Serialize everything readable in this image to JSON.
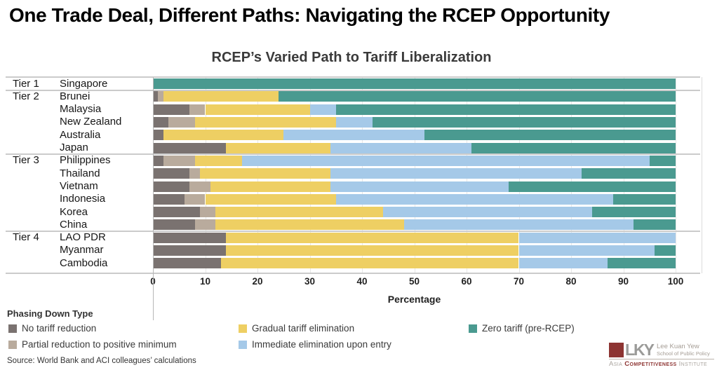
{
  "page_title": "One Trade Deal, Different Paths: Navigating the RCEP Opportunity",
  "chart_data": {
    "type": "bar",
    "orientation": "horizontal",
    "stacked": true,
    "title": "RCEP’s Varied Path to Tariff Liberalization",
    "xlabel": "Percentage",
    "xlim": [
      0,
      100
    ],
    "x_ticks": [
      0,
      10,
      20,
      30,
      40,
      50,
      60,
      70,
      80,
      90,
      100
    ],
    "grid": true,
    "legend_title": "Phasing Down Type",
    "legend_position": "bottom",
    "groups": [
      {
        "tier": "Tier 1",
        "countries": [
          "Singapore"
        ]
      },
      {
        "tier": "Tier 2",
        "countries": [
          "Brunei",
          "Malaysia",
          "New Zealand",
          "Australia",
          "Japan"
        ]
      },
      {
        "tier": "Tier 3",
        "countries": [
          "Philippines",
          "Thailand",
          "Vietnam",
          "Indonesia",
          "Korea",
          "China"
        ]
      },
      {
        "tier": "Tier 4",
        "countries": [
          "LAO PDR",
          "Myanmar",
          "Cambodia"
        ]
      }
    ],
    "categories": [
      "Singapore",
      "Brunei",
      "Malaysia",
      "New Zealand",
      "Australia",
      "Japan",
      "Philippines",
      "Thailand",
      "Vietnam",
      "Indonesia",
      "Korea",
      "China",
      "LAO PDR",
      "Myanmar",
      "Cambodia"
    ],
    "series": [
      {
        "name": "No tariff reduction",
        "color": "#7a7270",
        "values": [
          0,
          1,
          7,
          3,
          2,
          14,
          2,
          7,
          7,
          6,
          9,
          8,
          14,
          14,
          13
        ]
      },
      {
        "name": "Partial reduction to positive minimum",
        "color": "#b9ab9d",
        "values": [
          0,
          1,
          3,
          5,
          0,
          0,
          6,
          2,
          4,
          4,
          3,
          4,
          0,
          0,
          0
        ]
      },
      {
        "name": "Gradual tariff elimination",
        "color": "#eecf63",
        "values": [
          0,
          22,
          20,
          27,
          23,
          20,
          9,
          25,
          23,
          25,
          32,
          36,
          56,
          56,
          57
        ]
      },
      {
        "name": "Immediate elimination upon entry",
        "color": "#a5c9e8",
        "values": [
          0,
          0,
          5,
          7,
          27,
          27,
          78,
          48,
          34,
          53,
          40,
          44,
          30,
          26,
          17
        ]
      },
      {
        "name": "Zero tariff (pre-RCEP)",
        "color": "#4a9a90",
        "values": [
          100,
          76,
          65,
          58,
          48,
          39,
          5,
          18,
          32,
          12,
          16,
          8,
          0,
          4,
          13
        ]
      }
    ]
  },
  "source": "Source: World Bank and ACI colleagues’ calculations",
  "logo": {
    "mark": "LKY",
    "school_line1": "Lee Kuan Yew",
    "school_line2": "School of Public Policy",
    "institute_prefix": "Asia ",
    "institute_emph": "Competitiveness",
    "institute_suffix": " Institute"
  }
}
